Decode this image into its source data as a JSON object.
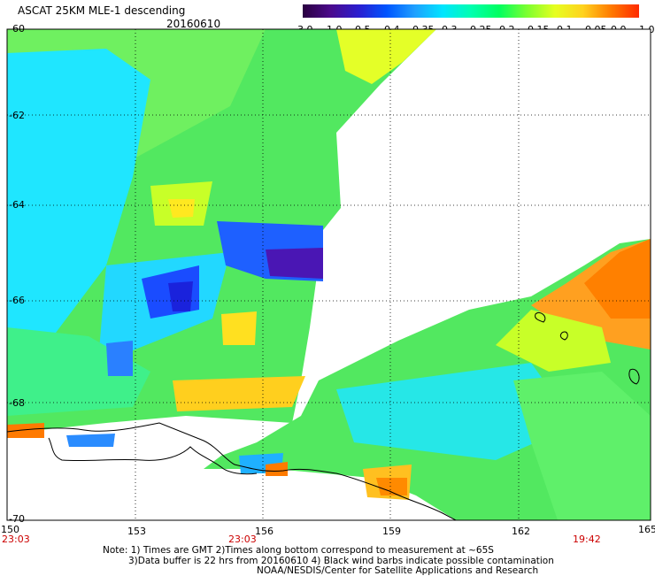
{
  "header": {
    "title": "ASCAT 25KM MLE-1 descending",
    "date": "20160610"
  },
  "colorbar": {
    "labels": [
      "-3.0",
      "-1.0",
      "-0.5",
      "-0.4",
      "-0.35",
      "-0.3",
      "-0.25",
      "-0.2",
      "-0.15",
      "-0.1",
      "-0.05",
      "0.0",
      "1.0"
    ],
    "colors": [
      "#2a0040",
      "#4b0a8c",
      "#2a1ed0",
      "#0055ff",
      "#1fa0ff",
      "#00e5ff",
      "#00ffb0",
      "#00ff60",
      "#7cff30",
      "#e6ff20",
      "#ffd21e",
      "#ff7a00",
      "#ff2a00"
    ]
  },
  "axes": {
    "lat_labels": [
      "-60",
      "-62",
      "-64",
      "-66",
      "-68",
      "-70"
    ],
    "lon_labels": [
      "150",
      "153",
      "156",
      "159",
      "162",
      "165"
    ]
  },
  "times": [
    "23:03",
    "23:03",
    "19:42"
  ],
  "notes": [
    "Note: 1) Times are GMT 2)Times along bottom correspond to measurement at ~65S",
    "3)Data buffer is 22 hrs from 20160610 4) Black wind barbs indicate possible contamination",
    "NOAA/NESDIS/Center for Satellite Applications and Research"
  ]
}
